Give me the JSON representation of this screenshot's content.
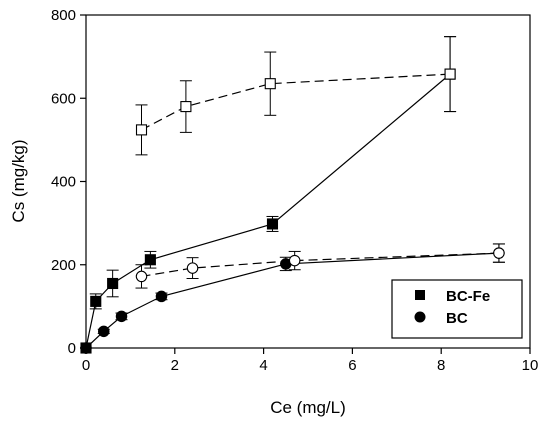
{
  "chart_data": {
    "type": "scatter",
    "xlabel": "Ce (mg/L)",
    "ylabel": "Cs (mg/kg)",
    "xlim": [
      0,
      10
    ],
    "ylim": [
      0,
      800
    ],
    "xticks": [
      "0",
      "2",
      "4",
      "6",
      "8",
      "10"
    ],
    "yticks": [
      "0",
      "200",
      "400",
      "600",
      "800"
    ],
    "grid": false,
    "legend_position": "bottom-right",
    "series": [
      {
        "name": "BC-Fe",
        "marker": "filled-square",
        "line": "solid",
        "points": [
          {
            "x": 0.0,
            "y": 0,
            "err": 0
          },
          {
            "x": 0.22,
            "y": 112,
            "err": 18
          },
          {
            "x": 0.6,
            "y": 155,
            "err": 32
          },
          {
            "x": 1.45,
            "y": 212,
            "err": 20
          },
          {
            "x": 4.2,
            "y": 298,
            "err": 18
          },
          {
            "x": 8.2,
            "y": 658,
            "err": 90
          }
        ]
      },
      {
        "name": "BC",
        "marker": "filled-circle",
        "line": "solid",
        "points": [
          {
            "x": 0.0,
            "y": 0,
            "err": 0
          },
          {
            "x": 0.4,
            "y": 40,
            "err": 5
          },
          {
            "x": 0.8,
            "y": 76,
            "err": 8
          },
          {
            "x": 1.7,
            "y": 124,
            "err": 8
          },
          {
            "x": 4.5,
            "y": 202,
            "err": 16
          },
          {
            "x": 9.3,
            "y": 228,
            "err": 22
          }
        ]
      },
      {
        "marker": "open-square",
        "line": "dashed",
        "points": [
          {
            "x": 1.25,
            "y": 524,
            "err": 60
          },
          {
            "x": 2.25,
            "y": 580,
            "err": 62
          },
          {
            "x": 4.15,
            "y": 635,
            "err": 76
          },
          {
            "x": 8.2,
            "y": 658,
            "err": 90
          }
        ]
      },
      {
        "marker": "open-circle",
        "line": "dashed",
        "points": [
          {
            "x": 1.25,
            "y": 172,
            "err": 28
          },
          {
            "x": 2.4,
            "y": 192,
            "err": 25
          },
          {
            "x": 4.7,
            "y": 210,
            "err": 22
          },
          {
            "x": 9.3,
            "y": 228,
            "err": 22
          }
        ]
      }
    ]
  }
}
